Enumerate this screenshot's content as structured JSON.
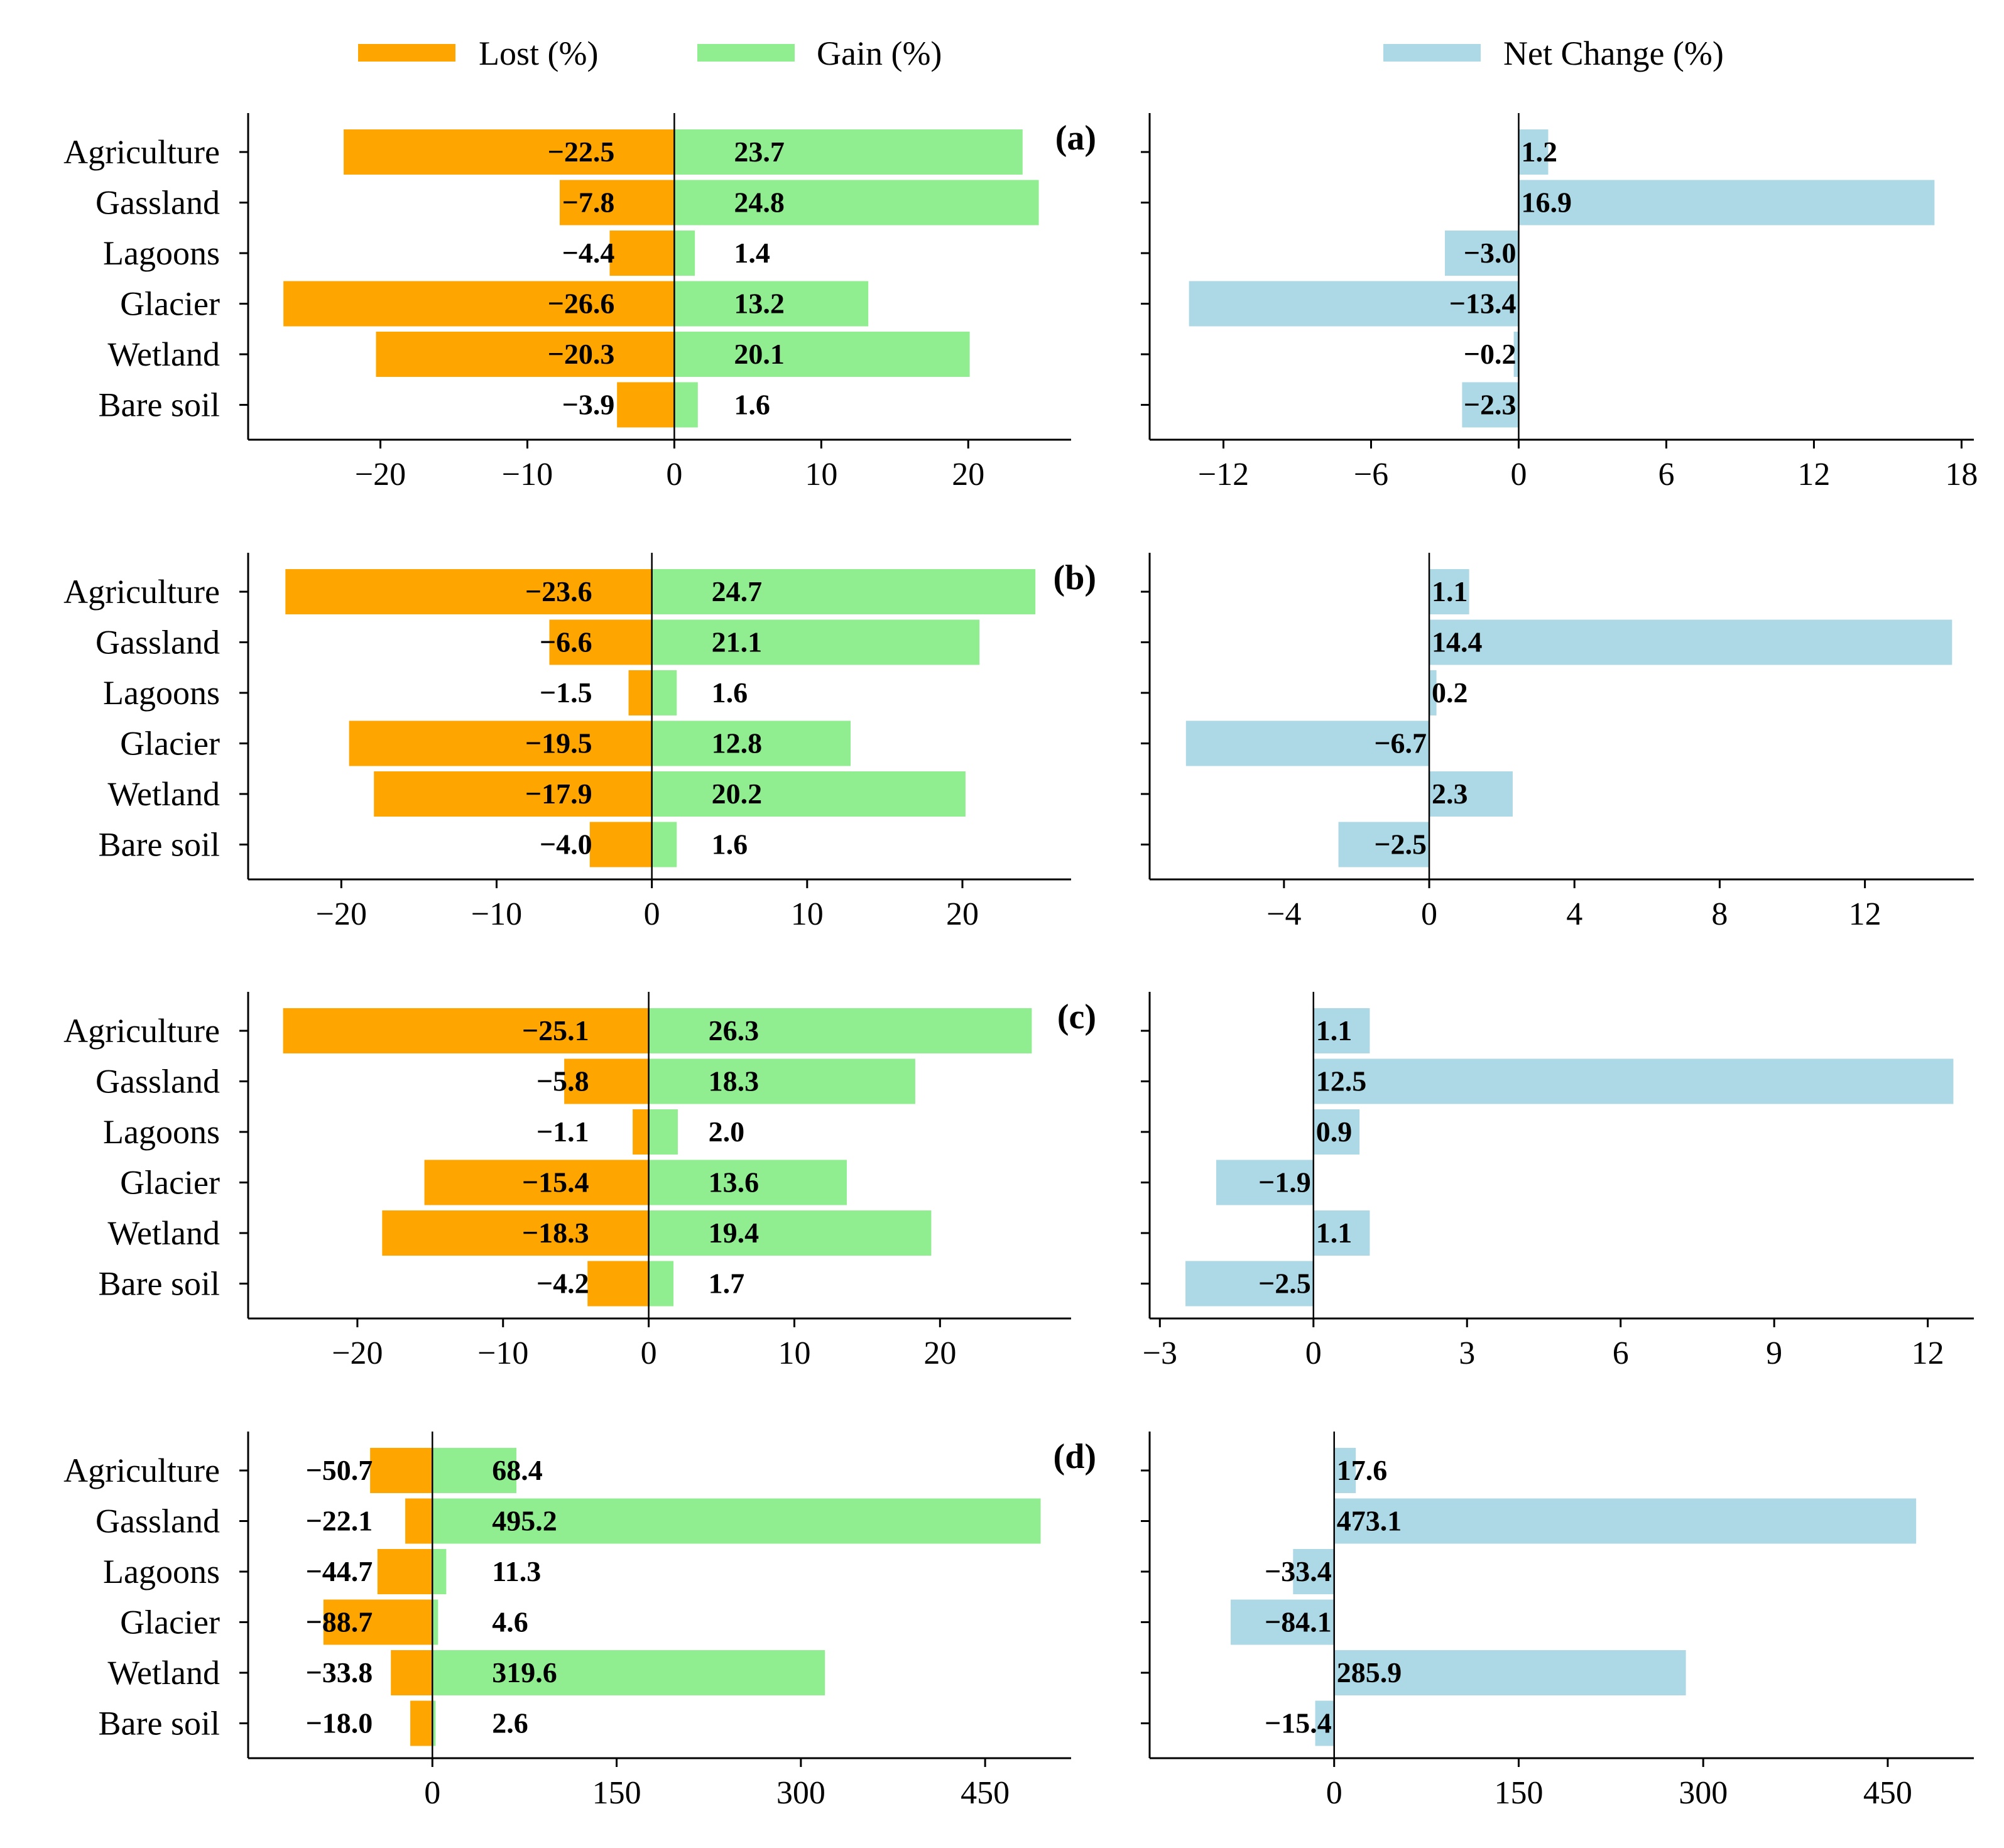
{
  "chart_data": {
    "type": "bar",
    "orientation": "horizontal",
    "categories": [
      "Agriculture",
      "Gassland",
      "Lagoons",
      "Glacier",
      "Wetland",
      "Bare soil"
    ],
    "legend": {
      "lost_label": "Lost (%)",
      "gain_label": "Gain (%)",
      "net_label": "Net Change (%)",
      "placement": "top"
    },
    "colors": {
      "lost": "#FFA500",
      "gain": "#90EE90",
      "net": "#ADD8E6"
    },
    "panels": [
      {
        "label": "(a)",
        "lost": [
          -22.5,
          -7.8,
          -4.4,
          -26.6,
          -20.3,
          -3.9
        ],
        "gain": [
          23.7,
          24.8,
          1.4,
          13.2,
          20.1,
          1.6
        ],
        "net": [
          1.2,
          16.9,
          -3.0,
          -13.4,
          -0.2,
          -2.3
        ],
        "lost_labels": [
          "−22.5",
          "−7.8",
          "−4.4",
          "−26.6",
          "−20.3",
          "−3.9"
        ],
        "gain_labels": [
          "23.7",
          "24.8",
          "1.4",
          "13.2",
          "20.1",
          "1.6"
        ],
        "net_labels": [
          "1.2",
          "16.9",
          "−3.0",
          "−13.4",
          "−0.2",
          "−2.3"
        ],
        "left_xlim": [
          -29,
          27
        ],
        "left_ticks": [
          -20,
          -10,
          0,
          10,
          20
        ],
        "left_tick_labels": [
          "−20",
          "−10",
          "0",
          "10",
          "20"
        ],
        "right_xlim": [
          -15,
          18.5
        ],
        "right_ticks": [
          -12,
          -6,
          0,
          6,
          12,
          18
        ],
        "right_tick_labels": [
          "−12",
          "−6",
          "0",
          "6",
          "12",
          "18"
        ]
      },
      {
        "label": "(b)",
        "lost": [
          -23.6,
          -6.6,
          -1.5,
          -19.5,
          -17.9,
          -4.0
        ],
        "gain": [
          24.7,
          21.1,
          1.6,
          12.8,
          20.2,
          1.6
        ],
        "net": [
          1.1,
          14.4,
          0.2,
          -6.7,
          2.3,
          -2.5
        ],
        "lost_labels": [
          "−23.6",
          "−6.6",
          "−1.5",
          "−19.5",
          "−17.9",
          "−4.0"
        ],
        "gain_labels": [
          "24.7",
          "21.1",
          "1.6",
          "12.8",
          "20.2",
          "1.6"
        ],
        "net_labels": [
          "1.1",
          "14.4",
          "0.2",
          "−6.7",
          "2.3",
          "−2.5"
        ],
        "left_xlim": [
          -26,
          27
        ],
        "left_ticks": [
          -20,
          -10,
          0,
          10,
          20
        ],
        "left_tick_labels": [
          "−20",
          "−10",
          "0",
          "10",
          "20"
        ],
        "right_xlim": [
          -7.7,
          15
        ],
        "right_ticks": [
          -4,
          0,
          4,
          8,
          12
        ],
        "right_tick_labels": [
          "−4",
          "0",
          "4",
          "8",
          "12"
        ]
      },
      {
        "label": "(c)",
        "lost": [
          -25.1,
          -5.8,
          -1.1,
          -15.4,
          -18.3,
          -4.2
        ],
        "gain": [
          26.3,
          18.3,
          2.0,
          13.6,
          19.4,
          1.7
        ],
        "net": [
          1.1,
          12.5,
          0.9,
          -1.9,
          1.1,
          -2.5
        ],
        "lost_labels": [
          "−25.1",
          "−5.8",
          "−1.1",
          "−15.4",
          "−18.3",
          "−4.2"
        ],
        "gain_labels": [
          "26.3",
          "18.3",
          "2.0",
          "13.6",
          "19.4",
          "1.7"
        ],
        "net_labels": [
          "1.1",
          "12.5",
          "0.9",
          "−1.9",
          "1.1",
          "−2.5"
        ],
        "left_xlim": [
          -27.5,
          29
        ],
        "left_ticks": [
          -20,
          -10,
          0,
          10,
          20
        ],
        "left_tick_labels": [
          "−20",
          "−10",
          "0",
          "10",
          "20"
        ],
        "right_xlim": [
          -3.2,
          12.9
        ],
        "right_ticks": [
          -3,
          0,
          3,
          6,
          9,
          12
        ],
        "right_tick_labels": [
          "−3",
          "0",
          "3",
          "6",
          "9",
          "12"
        ]
      },
      {
        "label": "(d)",
        "lost": [
          -50.7,
          -22.1,
          -44.7,
          -88.7,
          -33.8,
          -18.0
        ],
        "gain": [
          68.4,
          495.2,
          11.3,
          4.6,
          319.6,
          2.6
        ],
        "net": [
          17.6,
          473.1,
          -33.4,
          -84.1,
          285.9,
          -15.4
        ],
        "lost_labels": [
          "−50.7",
          "−22.1",
          "−44.7",
          "−88.7",
          "−33.8",
          "−18.0"
        ],
        "gain_labels": [
          "68.4",
          "495.2",
          "11.3",
          "4.6",
          "319.6",
          "2.6"
        ],
        "net_labels": [
          "17.6",
          "473.1",
          "−33.4",
          "−84.1",
          "285.9",
          "−15.4"
        ],
        "left_xlim": [
          -150,
          520
        ],
        "left_ticks": [
          0,
          150,
          300,
          450
        ],
        "left_tick_labels": [
          "0",
          "150",
          "300",
          "450"
        ],
        "right_xlim": [
          -150,
          520
        ],
        "right_ticks": [
          0,
          150,
          300,
          450
        ],
        "right_tick_labels": [
          "0",
          "150",
          "300",
          "450"
        ]
      }
    ]
  }
}
